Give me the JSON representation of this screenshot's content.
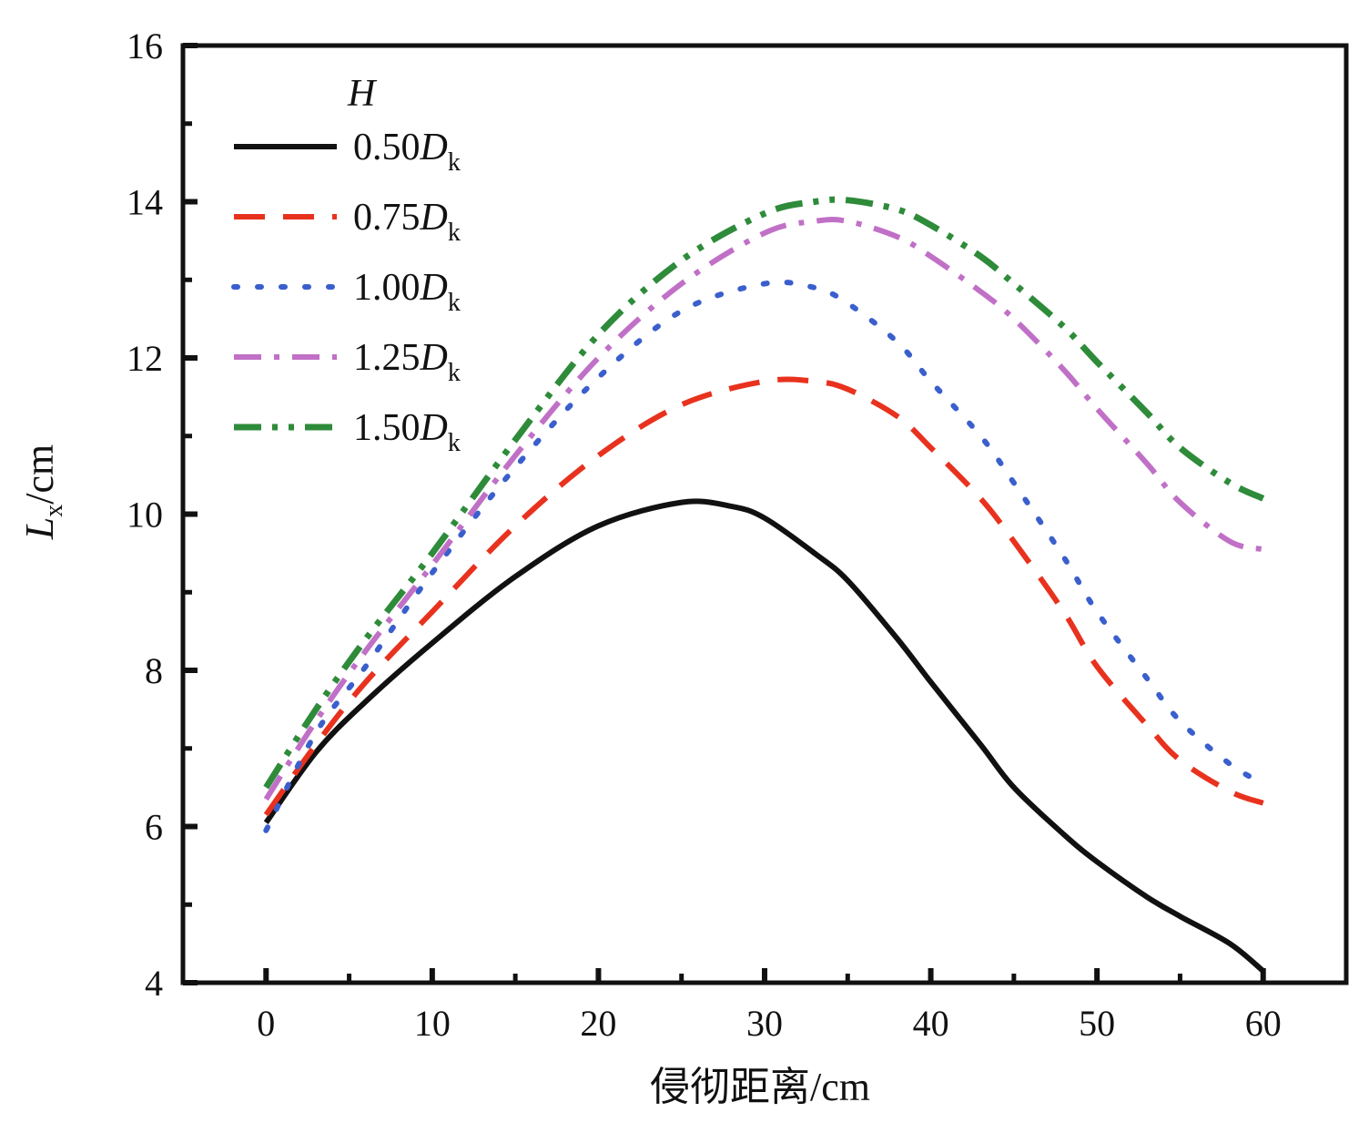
{
  "chart_data": {
    "type": "line",
    "xlabel": "侵彻距离/cm",
    "ylabel_main": "L",
    "ylabel_sub": "x",
    "ylabel_unit": "/cm",
    "xlim": [
      -5,
      65
    ],
    "ylim": [
      4,
      16
    ],
    "x_ticks": [
      0,
      10,
      20,
      30,
      40,
      50,
      60
    ],
    "y_ticks": [
      4,
      6,
      8,
      10,
      12,
      14,
      16
    ],
    "grid": false,
    "legend": {
      "title": "H",
      "position": "top-left"
    },
    "series": [
      {
        "name": "0.50D",
        "name_main": "0.50",
        "name_italic": "D",
        "name_sub": "k",
        "color": "#111111",
        "style": "solid",
        "x": [
          0,
          3,
          6,
          10,
          15,
          20,
          25,
          28,
          30,
          33,
          35,
          38,
          40,
          43,
          45,
          48,
          50,
          53,
          55,
          58,
          60
        ],
        "y": [
          6.05,
          6.95,
          7.6,
          8.35,
          9.2,
          9.85,
          10.15,
          10.1,
          9.95,
          9.5,
          9.15,
          8.4,
          7.85,
          7.05,
          6.5,
          5.9,
          5.55,
          5.1,
          4.85,
          4.5,
          4.15
        ]
      },
      {
        "name": "0.75D",
        "name_main": "0.75",
        "name_italic": "D",
        "name_sub": "k",
        "color": "#e8321e",
        "style": "dash",
        "x": [
          0,
          3,
          6,
          10,
          15,
          20,
          25,
          30,
          33,
          35,
          38,
          40,
          43,
          45,
          48,
          50,
          53,
          55,
          58,
          60
        ],
        "y": [
          6.15,
          7.05,
          7.85,
          8.75,
          9.85,
          10.75,
          11.4,
          11.7,
          11.7,
          11.6,
          11.25,
          10.85,
          10.2,
          9.65,
          8.75,
          8.05,
          7.3,
          6.85,
          6.45,
          6.3
        ]
      },
      {
        "name": "1.00D",
        "name_main": "1.00",
        "name_italic": "D",
        "name_sub": "k",
        "color": "#3a5fcd",
        "style": "dot",
        "x": [
          0,
          3,
          6,
          10,
          15,
          20,
          25,
          30,
          33,
          35,
          38,
          40,
          43,
          45,
          48,
          50,
          53,
          55,
          58,
          60
        ],
        "y": [
          5.95,
          7.2,
          8.05,
          9.25,
          10.6,
          11.75,
          12.6,
          12.95,
          12.9,
          12.7,
          12.2,
          11.7,
          11.0,
          10.4,
          9.45,
          8.75,
          7.9,
          7.35,
          6.8,
          6.55
        ]
      },
      {
        "name": "1.25D",
        "name_main": "1.25",
        "name_italic": "D",
        "name_sub": "k",
        "color": "#c070c6",
        "style": "dashdot",
        "x": [
          0,
          3,
          6,
          10,
          15,
          20,
          25,
          30,
          33,
          35,
          38,
          40,
          43,
          45,
          48,
          50,
          53,
          55,
          58,
          60
        ],
        "y": [
          6.35,
          7.35,
          8.25,
          9.35,
          10.75,
          12.0,
          12.95,
          13.6,
          13.75,
          13.75,
          13.55,
          13.3,
          12.85,
          12.5,
          11.85,
          11.35,
          10.65,
          10.15,
          9.65,
          9.55
        ]
      },
      {
        "name": "1.50D",
        "name_main": "1.50",
        "name_italic": "D",
        "name_sub": "k",
        "color": "#2e8b3a",
        "style": "dashdotdot",
        "x": [
          0,
          3,
          6,
          10,
          15,
          20,
          25,
          30,
          33,
          35,
          38,
          40,
          43,
          45,
          48,
          50,
          53,
          55,
          58,
          60
        ],
        "y": [
          6.5,
          7.5,
          8.4,
          9.5,
          10.95,
          12.3,
          13.25,
          13.85,
          14.0,
          14.02,
          13.9,
          13.7,
          13.3,
          12.95,
          12.4,
          11.95,
          11.3,
          10.85,
          10.4,
          10.2
        ]
      }
    ]
  }
}
